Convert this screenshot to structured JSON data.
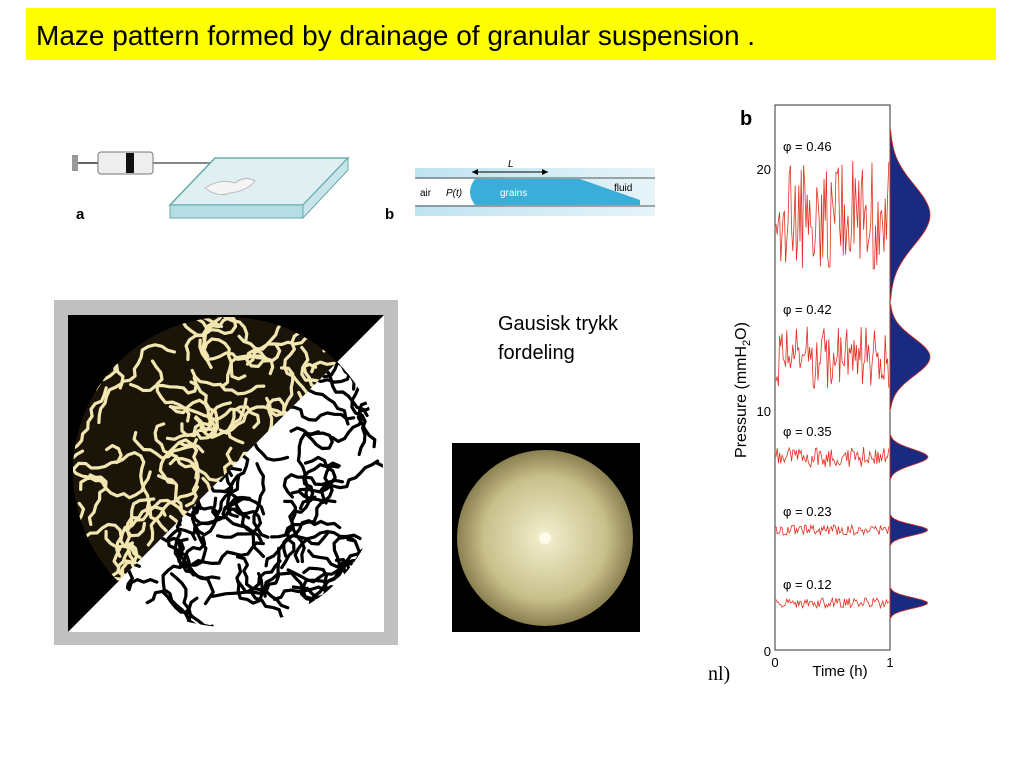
{
  "header": {
    "title": "Maze  pattern formed by drainage of granular suspension ."
  },
  "figure_a": {
    "label_a": "a",
    "label_b": "b",
    "air": "air",
    "pressure": "P(t)",
    "length": "L",
    "grains": "grains",
    "fluid": "fluid"
  },
  "note": {
    "lines": [
      "Gausisk  trykk",
      "fordeling"
    ]
  },
  "plot": {
    "panel": "b",
    "yticks": [
      "20",
      "10",
      "0"
    ],
    "y_label": [
      "Pressure (mmH",
      "2",
      "O)"
    ],
    "x_label": "Time (h)",
    "xticks": [
      "0",
      "1"
    ],
    "traces": [
      "φ = 0.46",
      "φ = 0.42",
      "φ = 0.35",
      "φ = 0.23",
      "φ = 0.12"
    ],
    "fragment": "nl)"
  }
}
